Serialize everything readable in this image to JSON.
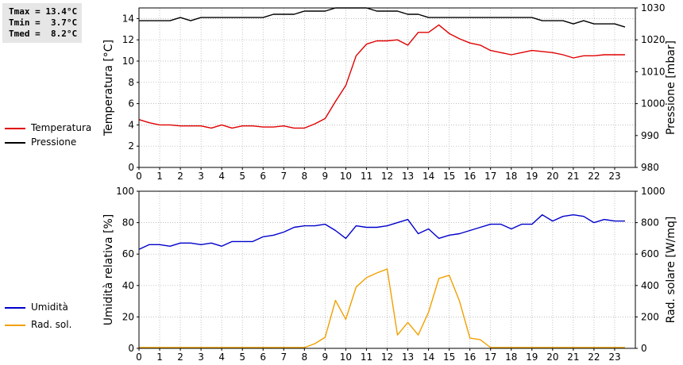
{
  "stats": {
    "tmax": "Tmax = 13.4°C",
    "tmin": "Tmin =  3.7°C",
    "tmed": "Tmed =  8.2°C"
  },
  "legend": {
    "top": [
      {
        "label": "Temperatura",
        "color": "#e00000"
      },
      {
        "label": "Pressione",
        "color": "#000000"
      }
    ],
    "bottom": [
      {
        "label": "Umidità",
        "color": "#0000cc"
      },
      {
        "label": "Rad. sol.",
        "color": "#f0a000"
      }
    ]
  },
  "chart_data": [
    {
      "type": "line",
      "xlabel": "",
      "ylabel": "Temperatura [°C]",
      "y2label": "Pressione [mbar]",
      "xlim": [
        0,
        24
      ],
      "ylim": [
        0,
        15
      ],
      "y2lim": [
        980,
        1030
      ],
      "xticks": [
        "0",
        "1",
        "2",
        "3",
        "4",
        "5",
        "6",
        "7",
        "8",
        "9",
        "10",
        "11",
        "12",
        "13",
        "14",
        "15",
        "16",
        "17",
        "18",
        "19",
        "20",
        "21",
        "22",
        "23"
      ],
      "yticks": [
        "0",
        "2",
        "4",
        "6",
        "8",
        "10",
        "12",
        "14"
      ],
      "y2ticks": [
        "980",
        "990",
        "1000",
        "1010",
        "1020",
        "1030"
      ],
      "grid": true,
      "series": [
        {
          "name": "Temperatura",
          "axis": "left",
          "color": "#e00000",
          "x": [
            0,
            0.5,
            1,
            1.5,
            2,
            2.5,
            3,
            3.5,
            4,
            4.5,
            5,
            5.5,
            6,
            6.5,
            7,
            7.5,
            8,
            8.5,
            9,
            9.5,
            10,
            10.5,
            11,
            11.5,
            12,
            12.5,
            13,
            13.5,
            14,
            14.5,
            15,
            15.5,
            16,
            16.5,
            17,
            17.5,
            18,
            18.5,
            19,
            19.5,
            20,
            20.5,
            21,
            21.5,
            22,
            22.5,
            23,
            23.5
          ],
          "y": [
            4.5,
            4.2,
            4.0,
            4.0,
            3.9,
            3.9,
            3.9,
            3.7,
            4.0,
            3.7,
            3.9,
            3.9,
            3.8,
            3.8,
            3.9,
            3.7,
            3.7,
            4.1,
            4.6,
            6.2,
            7.7,
            10.5,
            11.6,
            11.9,
            11.9,
            12.0,
            11.5,
            12.7,
            12.7,
            13.4,
            12.6,
            12.1,
            11.7,
            11.5,
            11.0,
            10.8,
            10.6,
            10.8,
            11.0,
            10.9,
            10.8,
            10.6,
            10.3,
            10.5,
            10.5,
            10.6,
            10.6,
            10.6
          ]
        },
        {
          "name": "Pressione",
          "axis": "right",
          "color": "#000000",
          "x": [
            0,
            0.5,
            1,
            1.5,
            2,
            2.5,
            3,
            3.5,
            4,
            4.5,
            5,
            5.5,
            6,
            6.5,
            7,
            7.5,
            8,
            8.5,
            9,
            9.5,
            10,
            10.5,
            11,
            11.5,
            12,
            12.5,
            13,
            13.5,
            14,
            14.5,
            15,
            15.5,
            16,
            16.5,
            17,
            17.5,
            18,
            18.5,
            19,
            19.5,
            20,
            20.5,
            21,
            21.5,
            22,
            22.5,
            23,
            23.5
          ],
          "y": [
            1026,
            1026,
            1026,
            1026,
            1027,
            1026,
            1027,
            1027,
            1027,
            1027,
            1027,
            1027,
            1027,
            1028,
            1028,
            1028,
            1029,
            1029,
            1029,
            1030,
            1030,
            1030,
            1030,
            1029,
            1029,
            1029,
            1028,
            1028,
            1027,
            1027,
            1027,
            1027,
            1027,
            1027,
            1027,
            1027,
            1027,
            1027,
            1027,
            1026,
            1026,
            1026,
            1025,
            1026,
            1025,
            1025,
            1025,
            1024
          ]
        }
      ]
    },
    {
      "type": "line",
      "xlabel": "",
      "ylabel": "Umidità relativa [%]",
      "y2label": "Rad. solare [W/mq]",
      "xlim": [
        0,
        24
      ],
      "ylim": [
        0,
        100
      ],
      "y2lim": [
        0,
        1000
      ],
      "xticks": [
        "0",
        "1",
        "2",
        "3",
        "4",
        "5",
        "6",
        "7",
        "8",
        "9",
        "10",
        "11",
        "12",
        "13",
        "14",
        "15",
        "16",
        "17",
        "18",
        "19",
        "20",
        "21",
        "22",
        "23"
      ],
      "yticks": [
        "0",
        "20",
        "40",
        "60",
        "80",
        "100"
      ],
      "y2ticks": [
        "0",
        "200",
        "400",
        "600",
        "800",
        "1000"
      ],
      "grid": true,
      "series": [
        {
          "name": "Umidità",
          "axis": "left",
          "color": "#0000cc",
          "x": [
            0,
            0.5,
            1,
            1.5,
            2,
            2.5,
            3,
            3.5,
            4,
            4.5,
            5,
            5.5,
            6,
            6.5,
            7,
            7.5,
            8,
            8.5,
            9,
            9.5,
            10,
            10.5,
            11,
            11.5,
            12,
            12.5,
            13,
            13.5,
            14,
            14.5,
            15,
            15.5,
            16,
            16.5,
            17,
            17.5,
            18,
            18.5,
            19,
            19.5,
            20,
            20.5,
            21,
            21.5,
            22,
            22.5,
            23,
            23.5
          ],
          "y": [
            63,
            66,
            66,
            65,
            67,
            67,
            66,
            67,
            65,
            68,
            68,
            68,
            71,
            72,
            74,
            77,
            78,
            78,
            79,
            75,
            70,
            78,
            77,
            77,
            78,
            80,
            82,
            73,
            76,
            70,
            72,
            73,
            75,
            77,
            79,
            79,
            76,
            79,
            79,
            85,
            81,
            84,
            85,
            84,
            80,
            82,
            81,
            81
          ]
        },
        {
          "name": "Rad. sol.",
          "axis": "right",
          "color": "#f0a000",
          "x": [
            0,
            0.5,
            1,
            1.5,
            2,
            2.5,
            3,
            3.5,
            4,
            4.5,
            5,
            5.5,
            6,
            6.5,
            7,
            7.5,
            8,
            8.5,
            9,
            9.5,
            10,
            10.5,
            11,
            11.5,
            12,
            12.5,
            13,
            13.5,
            14,
            14.5,
            15,
            15.5,
            16,
            16.5,
            17,
            17.5,
            18,
            18.5,
            19,
            19.5,
            20,
            20.5,
            21,
            21.5,
            22,
            22.5,
            23,
            23.5
          ],
          "y": [
            5,
            5,
            5,
            5,
            5,
            5,
            5,
            5,
            5,
            5,
            5,
            5,
            5,
            5,
            5,
            5,
            5,
            30,
            70,
            305,
            185,
            390,
            450,
            480,
            505,
            85,
            165,
            85,
            230,
            445,
            465,
            300,
            65,
            55,
            5,
            5,
            5,
            5,
            5,
            5,
            5,
            5,
            5,
            5,
            5,
            5,
            5,
            5
          ]
        }
      ]
    }
  ]
}
